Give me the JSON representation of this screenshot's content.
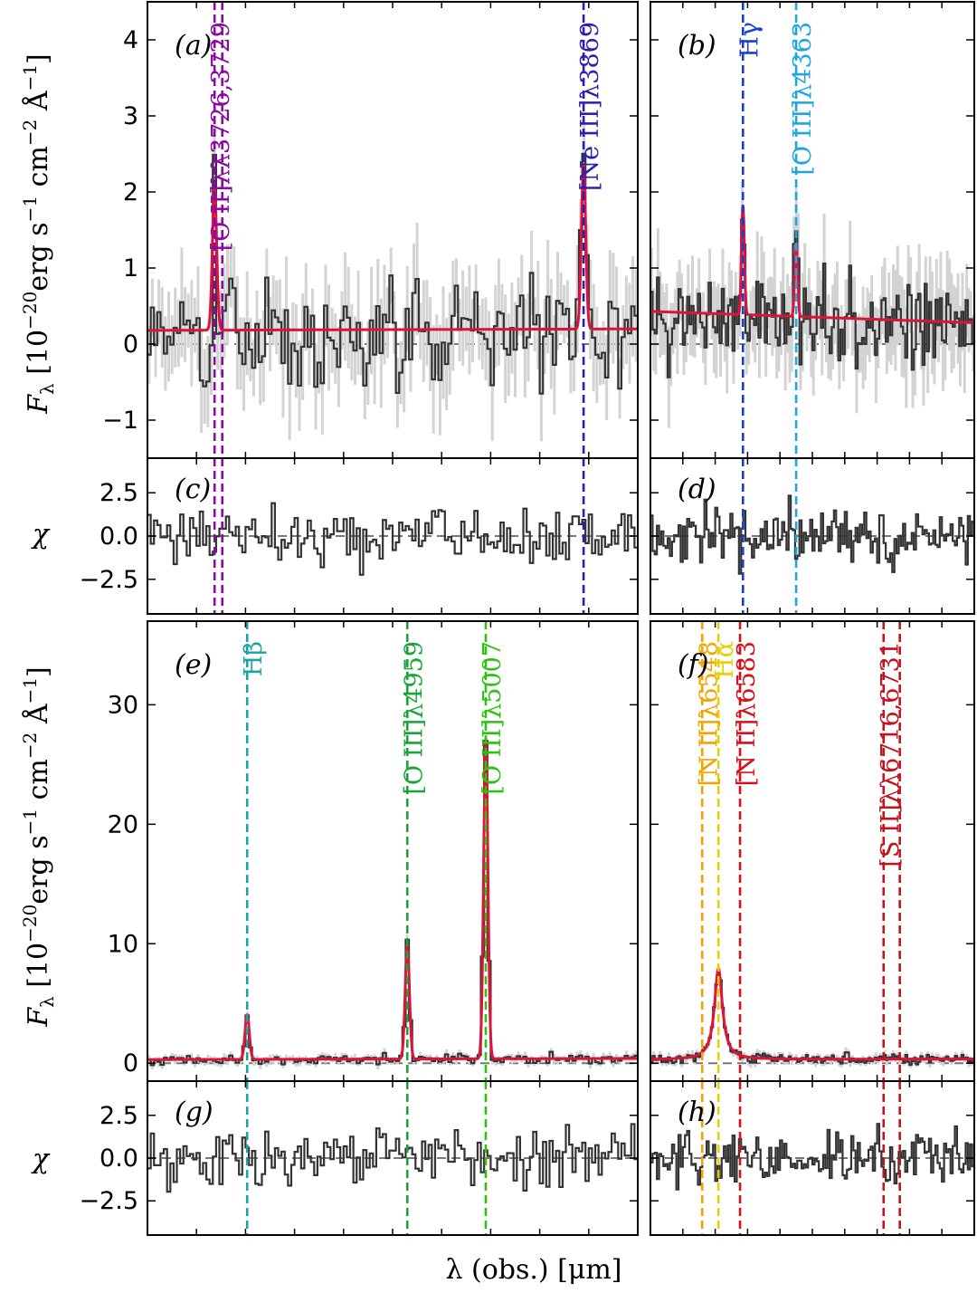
{
  "chart_data": {
    "type": "line",
    "title": "",
    "xlabel": "λ (obs.) [μm]",
    "ylabel_flux": "F_λ [10^-20 erg s^-1 cm^-2 Å^-1]",
    "ylabel_chi": "χ",
    "panels": [
      {
        "id": "a",
        "label": "(a)",
        "kind": "flux",
        "ylim": [
          -1.5,
          4.5
        ],
        "yticks": [
          -1,
          0,
          1,
          2,
          3,
          4
        ],
        "ytick_labels": [
          "−1",
          "0",
          "1",
          "2",
          "3",
          "4"
        ],
        "continuum": [
          0.18,
          0.2
        ],
        "noise": 0.5,
        "lmin": 3700,
        "lmax": 3890,
        "lines": [
          {
            "name": "[O II]λλ3726,3729",
            "wave": 3726,
            "color": "#8b0aa5",
            "amp": 1.9
          },
          {
            "name": "[O II]",
            "wave": 3729,
            "color": "#8b0aa5",
            "amp": 0
          },
          {
            "name": "[Ne III]λ3869",
            "wave": 3869,
            "color": "#2c1fb0",
            "amp": 2.2
          }
        ]
      },
      {
        "id": "b",
        "label": "(b)",
        "kind": "flux",
        "ylim": [
          -1.5,
          4.5
        ],
        "yticks": [
          -1,
          0,
          1,
          2,
          3,
          4
        ],
        "ytick_labels": [],
        "continuum": [
          0.43,
          0.28
        ],
        "noise": 0.45,
        "lmin": 4300,
        "lmax": 4440,
        "lines": [
          {
            "name": "Hγ",
            "wave": 4340,
            "color": "#1a3fd0",
            "amp": 1.45
          },
          {
            "name": "[O III]λ4363",
            "wave": 4363,
            "color": "#1ea6e0",
            "amp": 0.95
          }
        ]
      },
      {
        "id": "c",
        "label": "(c)",
        "kind": "chi",
        "ylim": [
          -4.5,
          4.5
        ],
        "yticks": [
          -2.5,
          0,
          2.5
        ],
        "ytick_labels": [
          "−2.5",
          "0.0",
          "2.5"
        ],
        "lmin": 3700,
        "lmax": 3890,
        "lines": [
          {
            "wave": 3726,
            "color": "#8b0aa5"
          },
          {
            "wave": 3729,
            "color": "#8b0aa5"
          },
          {
            "wave": 3869,
            "color": "#2c1fb0"
          }
        ]
      },
      {
        "id": "d",
        "label": "(d)",
        "kind": "chi",
        "ylim": [
          -4.5,
          4.5
        ],
        "yticks": [
          -2.5,
          0,
          2.5
        ],
        "ytick_labels": [],
        "lmin": 4300,
        "lmax": 4440,
        "lines": [
          {
            "wave": 4340,
            "color": "#1a3fd0"
          },
          {
            "wave": 4363,
            "color": "#1ea6e0"
          }
        ]
      },
      {
        "id": "e",
        "label": "(e)",
        "kind": "flux",
        "ylim": [
          -1.5,
          37
        ],
        "yticks": [
          0,
          10,
          20,
          30
        ],
        "ytick_labels": [
          "0",
          "10",
          "20",
          "30"
        ],
        "continuum": [
          0.3,
          0.4
        ],
        "noise": 0.3,
        "lmin": 4800,
        "lmax": 5100,
        "lines": [
          {
            "name": "Hβ",
            "wave": 4861,
            "color": "#1aa5a5",
            "amp": 3.8
          },
          {
            "name": "[O III]λ4959",
            "wave": 4959,
            "color": "#1aa53a",
            "amp": 9.6
          },
          {
            "name": "[O III]λ5007",
            "wave": 5007,
            "color": "#2bc40d",
            "amp": 26.8
          }
        ]
      },
      {
        "id": "f",
        "label": "(f)",
        "kind": "flux",
        "ylim": [
          -1.5,
          37
        ],
        "yticks": [
          0,
          10,
          20,
          30
        ],
        "ytick_labels": [],
        "continuum": [
          0.3,
          0.35
        ],
        "noise": 0.3,
        "lmin": 6500,
        "lmax": 6800,
        "lines": [
          {
            "name": "[N II]λ6548",
            "wave": 6548,
            "color": "#f5a300",
            "amp": 0
          },
          {
            "name": "Hα",
            "wave": 6563,
            "color": "#e8d000",
            "amp": 7.6
          },
          {
            "name": "[N II]λ6583",
            "wave": 6583,
            "color": "#d80f1a",
            "amp": 0
          },
          {
            "name": "[S II]λλ6716,6731",
            "wave": 6716,
            "color": "#c4121e",
            "amp": 0
          },
          {
            "name": "[S II]",
            "wave": 6731,
            "color": "#c4121e",
            "amp": 0
          }
        ]
      },
      {
        "id": "g",
        "label": "(g)",
        "kind": "chi",
        "ylim": [
          -4.5,
          4.5
        ],
        "yticks": [
          -2.5,
          0,
          2.5
        ],
        "ytick_labels": [
          "−2.5",
          "0.0",
          "2.5"
        ],
        "lmin": 4800,
        "lmax": 5100,
        "lines": [
          {
            "wave": 4861,
            "color": "#1aa5a5"
          },
          {
            "wave": 4959,
            "color": "#1aa53a"
          },
          {
            "wave": 5007,
            "color": "#2bc40d"
          }
        ]
      },
      {
        "id": "h",
        "label": "(h)",
        "kind": "chi",
        "ylim": [
          -4.5,
          4.5
        ],
        "yticks": [
          -2.5,
          0,
          2.5
        ],
        "ytick_labels": [],
        "lmin": 6500,
        "lmax": 6800,
        "lines": [
          {
            "wave": 6548,
            "color": "#f5a300"
          },
          {
            "wave": 6563,
            "color": "#e8d000"
          },
          {
            "wave": 6583,
            "color": "#d80f1a"
          },
          {
            "wave": 6716,
            "color": "#c4121e"
          },
          {
            "wave": 6731,
            "color": "#c4121e"
          }
        ]
      }
    ],
    "colors": {
      "data": "#333333",
      "error": "#d3d3d3",
      "model": "#dc143c",
      "zero": "#777777"
    }
  }
}
